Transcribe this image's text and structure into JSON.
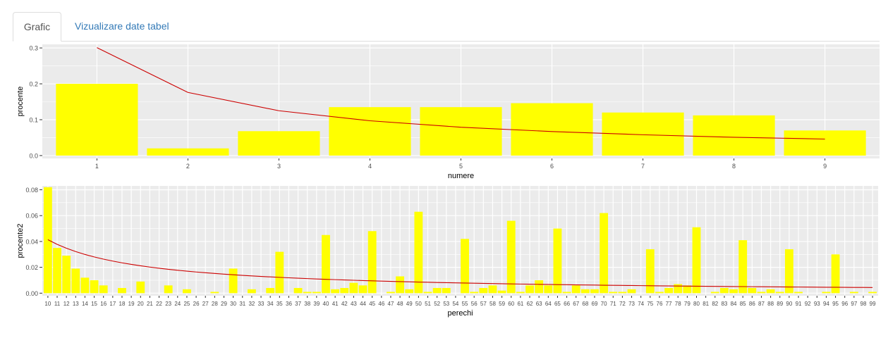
{
  "tabs": [
    {
      "label": "Grafic",
      "active": true
    },
    {
      "label": "Vizualizare date tabel",
      "active": false
    }
  ],
  "colors": {
    "panel_bg": "#ebebeb",
    "grid": "#ffffff",
    "bar_fill": "#ffff00",
    "line": "#cc0000",
    "axis_text": "#4d4d4d",
    "tab_link": "#337ab7"
  },
  "chart_data": [
    {
      "type": "bar",
      "xlabel": "numere",
      "ylabel": "procente",
      "categories": [
        "1",
        "2",
        "3",
        "4",
        "5",
        "6",
        "7",
        "8",
        "9"
      ],
      "values": [
        0.2,
        0.02,
        0.068,
        0.135,
        0.135,
        0.146,
        0.12,
        0.112,
        0.07
      ],
      "line": {
        "type": "line",
        "x": [
          "1",
          "2",
          "3",
          "4",
          "5",
          "6",
          "7",
          "8",
          "9"
        ],
        "y": [
          0.301,
          0.176,
          0.125,
          0.097,
          0.079,
          0.067,
          0.058,
          0.051,
          0.046
        ]
      },
      "ylim": [
        -0.008,
        0.31
      ],
      "yticks": [
        "0.0",
        "0.1",
        "0.2",
        "0.3"
      ],
      "ytick_values": [
        0,
        0.1,
        0.2,
        0.3
      ],
      "grid": true,
      "legend": "none"
    },
    {
      "type": "bar",
      "xlabel": "perechi",
      "ylabel": "procente2",
      "categories": [
        "10",
        "11",
        "12",
        "13",
        "14",
        "15",
        "16",
        "17",
        "18",
        "19",
        "20",
        "21",
        "22",
        "23",
        "24",
        "25",
        "26",
        "27",
        "28",
        "29",
        "30",
        "31",
        "32",
        "33",
        "34",
        "35",
        "36",
        "37",
        "38",
        "39",
        "40",
        "41",
        "42",
        "43",
        "44",
        "45",
        "46",
        "47",
        "48",
        "49",
        "50",
        "51",
        "52",
        "53",
        "54",
        "55",
        "56",
        "57",
        "58",
        "59",
        "60",
        "61",
        "62",
        "63",
        "64",
        "65",
        "66",
        "67",
        "68",
        "69",
        "70",
        "71",
        "72",
        "73",
        "74",
        "75",
        "76",
        "77",
        "78",
        "79",
        "80",
        "81",
        "82",
        "83",
        "84",
        "85",
        "86",
        "87",
        "88",
        "89",
        "90",
        "91",
        "92",
        "93",
        "94",
        "95",
        "96",
        "97",
        "98",
        "99"
      ],
      "values": [
        0.082,
        0.035,
        0.029,
        0.019,
        0.012,
        0.01,
        0.006,
        0,
        0.004,
        0,
        0.009,
        0,
        0,
        0.006,
        0,
        0.003,
        0,
        0,
        0.001,
        0,
        0.019,
        0,
        0.003,
        0,
        0.004,
        0.032,
        0,
        0.004,
        0.001,
        0.001,
        0.045,
        0.003,
        0.004,
        0.008,
        0.006,
        0.048,
        0,
        0.001,
        0.013,
        0.003,
        0.063,
        0.001,
        0.004,
        0.004,
        0,
        0.042,
        0.001,
        0.004,
        0.006,
        0.002,
        0.056,
        0.001,
        0.006,
        0.01,
        0.006,
        0.05,
        0.001,
        0.006,
        0.003,
        0.003,
        0.062,
        0.001,
        0.001,
        0.003,
        0,
        0.034,
        0.001,
        0.004,
        0.007,
        0.006,
        0.051,
        0,
        0.001,
        0.004,
        0.003,
        0.041,
        0.004,
        0.001,
        0.003,
        0.001,
        0.034,
        0.001,
        0,
        0,
        0.001,
        0.03,
        0,
        0.001,
        0,
        0.001
      ],
      "line": {
        "type": "line",
        "x_range": [
          "10",
          "99"
        ],
        "formula": "log10(1+1/x)"
      },
      "ylim": [
        -0.002,
        0.083
      ],
      "yticks": [
        "0.00",
        "0.02",
        "0.04",
        "0.06",
        "0.08"
      ],
      "ytick_values": [
        0,
        0.02,
        0.04,
        0.06,
        0.08
      ],
      "grid": true,
      "legend": "none"
    }
  ]
}
